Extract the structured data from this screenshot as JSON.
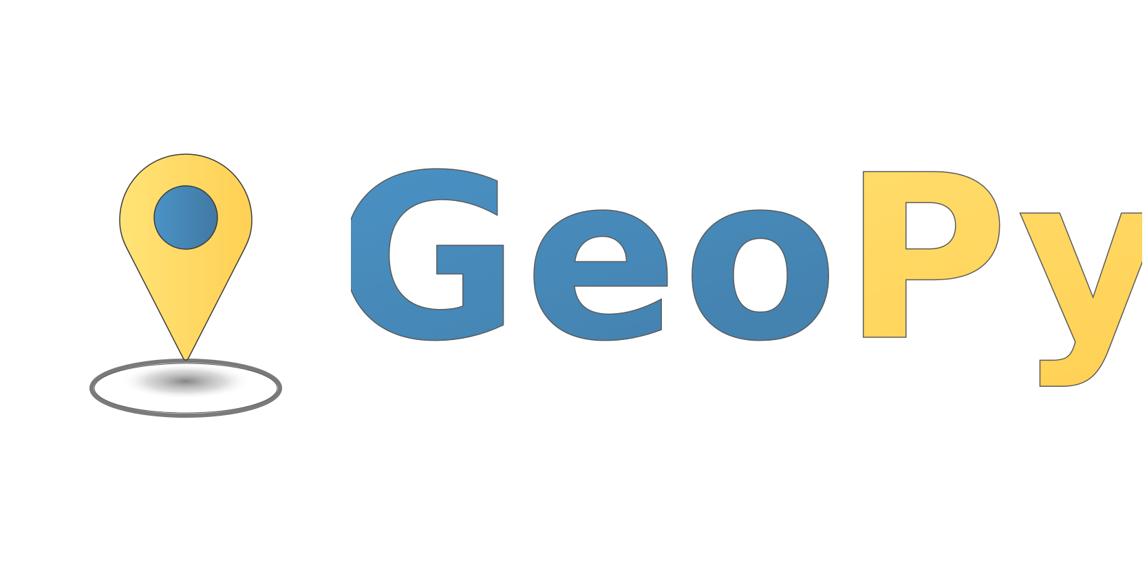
{
  "logo": {
    "wordmark_part1": "Geo",
    "wordmark_part2": "Py",
    "icon": "map-pin-icon"
  },
  "colors": {
    "blue_light": "#4a93c6",
    "blue_dark": "#4179a3",
    "yellow_light": "#ffe377",
    "yellow_dark": "#ffd054",
    "outline": "#5a5a5a",
    "shadow_ring": "#7a7a7a"
  }
}
